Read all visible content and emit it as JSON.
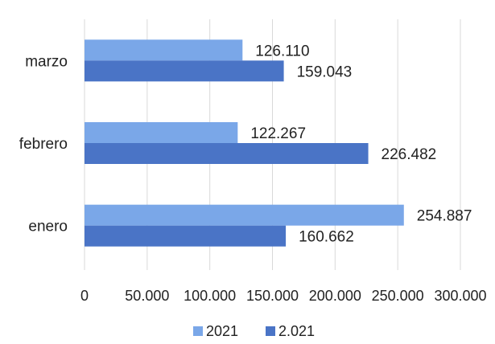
{
  "chart_data": {
    "type": "bar",
    "orientation": "horizontal",
    "title": "",
    "xlabel": "",
    "ylabel": "",
    "categories": [
      "enero",
      "febrero",
      "marzo"
    ],
    "series": [
      {
        "name": "2021",
        "color": "#7aa7e8",
        "values": [
          254887,
          122267,
          126110
        ]
      },
      {
        "name": "2.021",
        "color": "#4a74c6",
        "values": [
          160662,
          226482,
          159043
        ]
      }
    ],
    "data_labels": [
      [
        "254.887",
        "122.267",
        "126.110"
      ],
      [
        "160.662",
        "226.482",
        "159.043"
      ]
    ],
    "xlim": [
      0,
      300000
    ],
    "x_ticks": [
      0,
      50000,
      100000,
      150000,
      200000,
      250000,
      300000
    ],
    "x_tick_labels": [
      "0",
      "50.000",
      "100.000",
      "150.000",
      "200.000",
      "250.000",
      "300.000"
    ],
    "grid": "vertical",
    "legend": "bottom"
  }
}
